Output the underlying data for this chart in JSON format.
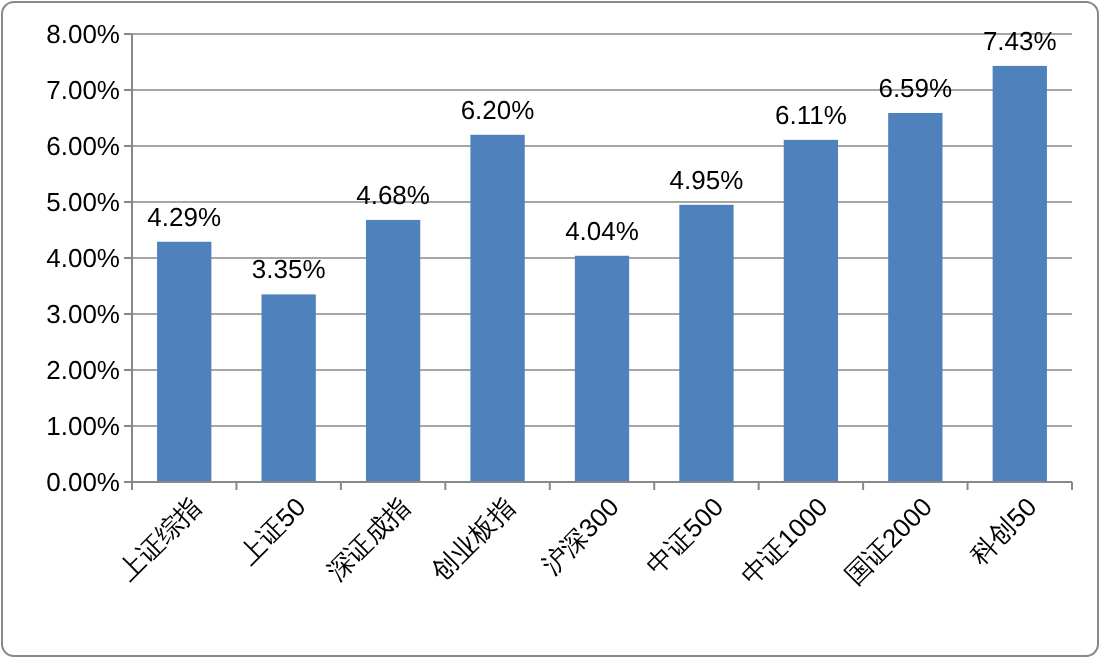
{
  "chart_data": {
    "type": "bar",
    "categories": [
      "上证综指",
      "上证50",
      "深证成指",
      "创业板指",
      "沪深300",
      "中证500",
      "中证1000",
      "国证2000",
      "科创50"
    ],
    "values": [
      4.29,
      3.35,
      4.68,
      6.2,
      4.04,
      4.95,
      6.11,
      6.59,
      7.43
    ],
    "value_labels": [
      "4.29%",
      "3.35%",
      "4.68%",
      "6.20%",
      "4.04%",
      "4.95%",
      "6.11%",
      "6.59%",
      "7.43%"
    ],
    "color": "#4f81bd",
    "ylim": [
      0,
      8
    ],
    "yticks": [
      {
        "value": 0,
        "label": "0.00%"
      },
      {
        "value": 1,
        "label": "1.00%"
      },
      {
        "value": 2,
        "label": "2.00%"
      },
      {
        "value": 3,
        "label": "3.00%"
      },
      {
        "value": 4,
        "label": "4.00%"
      },
      {
        "value": 5,
        "label": "5.00%"
      },
      {
        "value": 6,
        "label": "6.00%"
      },
      {
        "value": 7,
        "label": "7.00%"
      },
      {
        "value": 8,
        "label": "8.00%"
      }
    ],
    "grid": "y"
  }
}
